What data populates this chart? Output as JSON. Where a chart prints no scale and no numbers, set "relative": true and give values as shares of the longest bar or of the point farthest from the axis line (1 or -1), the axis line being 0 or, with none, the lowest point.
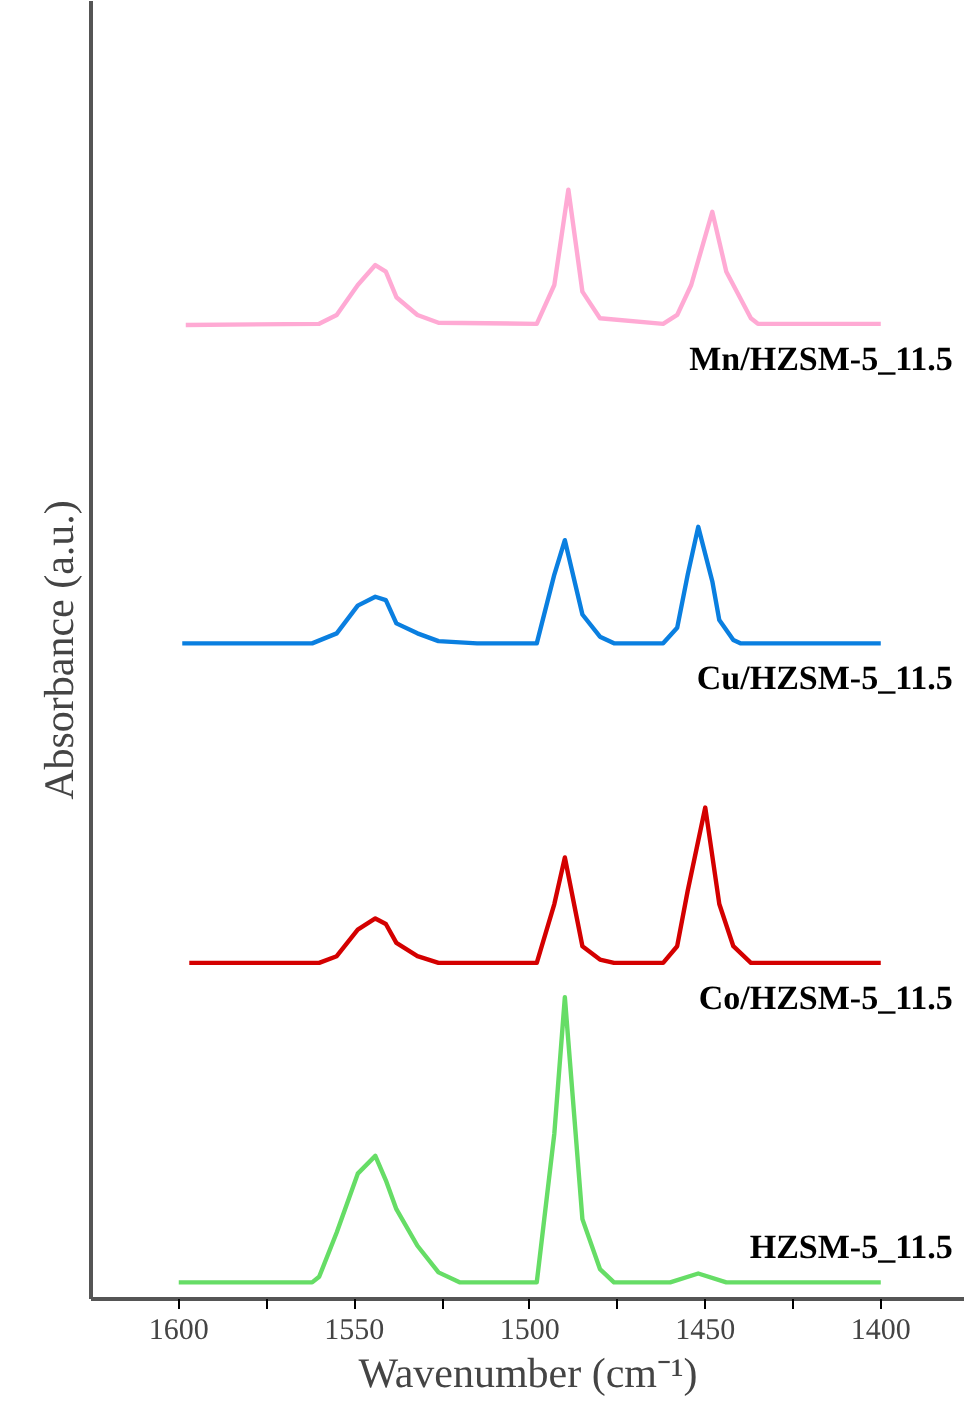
{
  "chart_data": {
    "type": "line",
    "relative": true,
    "xlabel": "Wavenumber (cm⁻¹)",
    "ylabel": "Absorbance (a.u.)",
    "xlim": [
      1625,
      1376
    ],
    "xticks": [
      1600,
      {
        "value": 1575,
        "label": null
      },
      1550,
      {
        "value": 1525,
        "label": null
      },
      1500,
      {
        "value": 1475,
        "label": null
      },
      1450,
      {
        "value": 1425,
        "label": null
      },
      1400
    ],
    "grid": false,
    "legend": false,
    "marker": "none",
    "line_style": "solid",
    "series": [
      {
        "name": "HZSM-5_11.5",
        "color": "#66dd66",
        "x": [
          1600,
          1562,
          1560,
          1555,
          1549,
          1544,
          1541,
          1538,
          1532,
          1526,
          1520,
          1498,
          1493,
          1490,
          1485,
          1480,
          1476,
          1460,
          1452,
          1444,
          1400
        ],
        "values": [
          0.015,
          0.015,
          0.02,
          0.06,
          0.113,
          0.129,
          0.107,
          0.081,
          0.048,
          0.024,
          0.015,
          0.015,
          0.149,
          0.272,
          0.072,
          0.027,
          0.015,
          0.015,
          0.023,
          0.015,
          0.015
        ]
      },
      {
        "name": "Co/HZSM-5_11.5",
        "color": "#d40000",
        "x": [
          1597,
          1560,
          1555,
          1549,
          1544,
          1541,
          1538,
          1532,
          1526,
          1498,
          1493,
          1490,
          1485,
          1480,
          1476,
          1462,
          1458,
          1455,
          1450,
          1446,
          1442,
          1437,
          1400
        ],
        "values": [
          0.303,
          0.303,
          0.309,
          0.333,
          0.343,
          0.338,
          0.321,
          0.309,
          0.303,
          0.303,
          0.356,
          0.398,
          0.318,
          0.306,
          0.303,
          0.303,
          0.318,
          0.368,
          0.443,
          0.356,
          0.318,
          0.303,
          0.303
        ]
      },
      {
        "name": "Cu/HZSM-5_11.5",
        "color": "#0a7fe0",
        "x": [
          1599,
          1562,
          1555,
          1549,
          1544,
          1541,
          1538,
          1532,
          1526,
          1515,
          1498,
          1493,
          1490,
          1485,
          1480,
          1476,
          1462,
          1458,
          1455,
          1452,
          1448,
          1446,
          1442,
          1440,
          1400
        ],
        "values": [
          0.591,
          0.591,
          0.6,
          0.625,
          0.633,
          0.63,
          0.609,
          0.6,
          0.593,
          0.591,
          0.591,
          0.653,
          0.684,
          0.617,
          0.597,
          0.591,
          0.591,
          0.605,
          0.653,
          0.696,
          0.647,
          0.612,
          0.594,
          0.591,
          0.591
        ]
      },
      {
        "name": "Mn/HZSM-5_11.5",
        "color": "#ffaad4",
        "x": [
          1598,
          1560,
          1555,
          1549,
          1544,
          1541,
          1538,
          1532,
          1526,
          1498,
          1493,
          1489,
          1485,
          1480,
          1462,
          1458,
          1454,
          1448,
          1444,
          1437,
          1435,
          1400
        ],
        "values": [
          0.878,
          0.879,
          0.887,
          0.914,
          0.932,
          0.926,
          0.903,
          0.887,
          0.88,
          0.879,
          0.914,
          1.0,
          0.908,
          0.884,
          0.879,
          0.887,
          0.914,
          0.98,
          0.926,
          0.884,
          0.879,
          0.879
        ]
      }
    ]
  }
}
